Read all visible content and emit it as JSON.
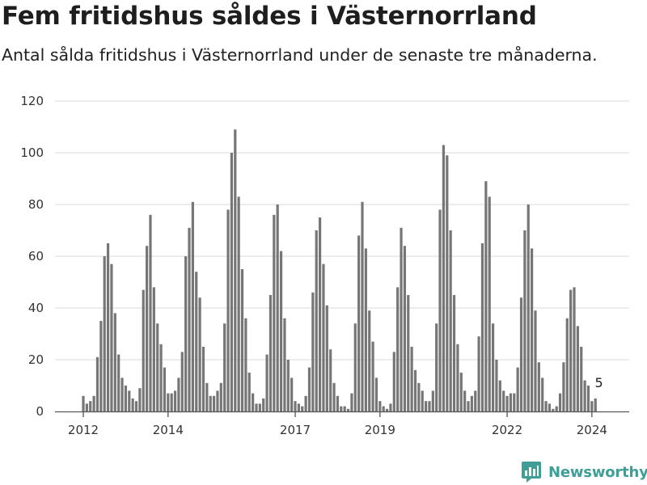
{
  "header": {
    "title": "Fem fritidshus såldes i Västernorrland",
    "subtitle": "Antal sålda fritidshus i Västernorrland under de senaste tre månaderna."
  },
  "brand": {
    "name": "Newsworthy",
    "icon": "newsworthy-logo-icon",
    "color": "#3f9e96"
  },
  "colors": {
    "bar": "#767676",
    "highlight": "#1a9c8f",
    "grid": "#d9d9d9"
  },
  "chart_data": {
    "type": "bar",
    "title": "Fem fritidshus såldes i Västernorrland",
    "subtitle": "Antal sålda fritidshus i Västernorrland under de senaste tre månaderna.",
    "xlabel": "",
    "ylabel": "",
    "ylim": [
      0,
      120
    ],
    "yticks": [
      0,
      20,
      40,
      60,
      80,
      100,
      120
    ],
    "grid": true,
    "xticks": [
      {
        "label": "2012",
        "index": 0
      },
      {
        "label": "2014",
        "index": 24
      },
      {
        "label": "2017",
        "index": 60
      },
      {
        "label": "2019",
        "index": 84
      },
      {
        "label": "2022",
        "index": 120
      },
      {
        "label": "2024",
        "index": 144
      }
    ],
    "highlight": {
      "index": 146,
      "value": 5,
      "label": "5"
    },
    "values": [
      6,
      3,
      4,
      6,
      21,
      35,
      60,
      65,
      57,
      38,
      22,
      13,
      10,
      8,
      5,
      4,
      9,
      47,
      64,
      76,
      48,
      34,
      26,
      17,
      7,
      7,
      8,
      13,
      23,
      60,
      71,
      81,
      54,
      44,
      25,
      11,
      6,
      6,
      8,
      11,
      34,
      78,
      100,
      109,
      83,
      55,
      36,
      15,
      7,
      3,
      3,
      5,
      22,
      45,
      76,
      80,
      62,
      36,
      20,
      13,
      4,
      3,
      2,
      6,
      17,
      46,
      70,
      75,
      57,
      41,
      24,
      11,
      6,
      2,
      2,
      1,
      7,
      34,
      68,
      81,
      63,
      39,
      27,
      13,
      4,
      2,
      1,
      3,
      23,
      48,
      71,
      64,
      45,
      25,
      16,
      11,
      8,
      4,
      4,
      8,
      34,
      78,
      103,
      99,
      70,
      45,
      26,
      15,
      8,
      4,
      6,
      8,
      29,
      65,
      89,
      83,
      34,
      20,
      12,
      8,
      6,
      7,
      7,
      17,
      44,
      70,
      80,
      63,
      39,
      19,
      13,
      4,
      3,
      1,
      2,
      7,
      19,
      36,
      47,
      48,
      33,
      25,
      12,
      10,
      4,
      5
    ]
  }
}
